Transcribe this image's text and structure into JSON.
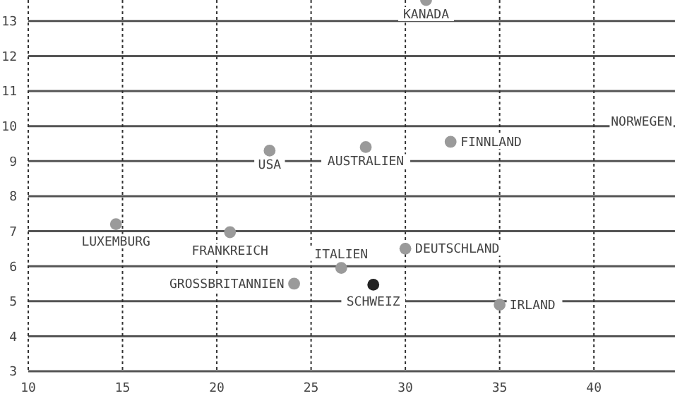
{
  "chart_data": {
    "type": "scatter",
    "x": [
      31.1,
      22.8,
      27.9,
      32.4,
      14.65,
      20.7,
      24.1,
      26.6,
      28.3,
      30.0,
      35.0
    ],
    "values": [
      13.6,
      9.3,
      9.4,
      9.55,
      7.2,
      6.97,
      5.5,
      5.95,
      5.47,
      6.5,
      4.9
    ],
    "colors": [
      "#9a9a9a",
      "#9a9a9a",
      "#9a9a9a",
      "#9a9a9a",
      "#9a9a9a",
      "#9a9a9a",
      "#9a9a9a",
      "#9a9a9a",
      "#222222",
      "#9a9a9a",
      "#9a9a9a"
    ],
    "xlim": [
      10,
      44.3
    ],
    "xticks": [
      10,
      15,
      20,
      25,
      30,
      35,
      40
    ],
    "ylim": [
      3,
      13.6
    ],
    "yticks": [
      3,
      4,
      5,
      6,
      7,
      8,
      9,
      10,
      11,
      12,
      13
    ],
    "grid": true,
    "marker": "circle",
    "annotations": [
      {
        "text": "KANADA",
        "x": 31.1,
        "y": 13.6
      },
      {
        "text": "USA",
        "x": 22.8,
        "y": 9.3
      },
      {
        "text": "AUSTRALIEN",
        "x": 27.9,
        "y": 9.4
      },
      {
        "text": "FINNLAND",
        "x": 32.4,
        "y": 9.55
      },
      {
        "text": "LUXEMBURG",
        "x": 14.65,
        "y": 7.2
      },
      {
        "text": "FRANKREICH",
        "x": 20.7,
        "y": 6.97
      },
      {
        "text": "GROSSBRITANNIEN",
        "x": 24.1,
        "y": 5.5
      },
      {
        "text": "ITALIEN",
        "x": 26.6,
        "y": 5.95
      },
      {
        "text": "SCHWEIZ",
        "x": 28.3,
        "y": 5.47
      },
      {
        "text": "DEUTSCHLAND",
        "x": 30.0,
        "y": 6.5
      },
      {
        "text": "IRLAND",
        "x": 35.0,
        "y": 4.9
      },
      "NORWEGEN"
    ]
  }
}
